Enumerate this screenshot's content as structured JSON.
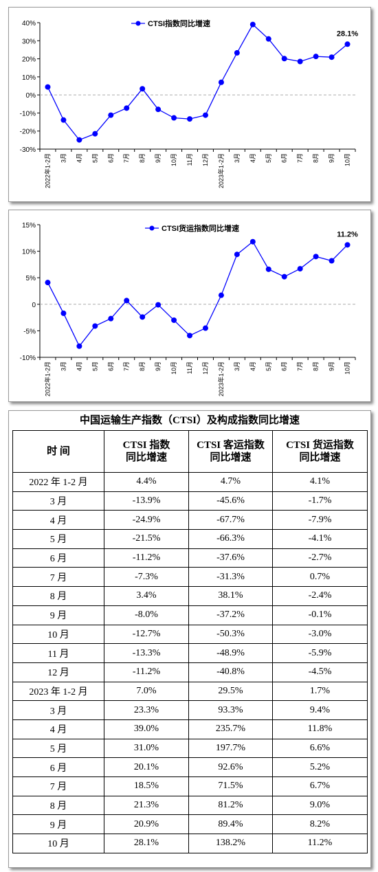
{
  "chart_data": [
    {
      "type": "line",
      "categories": [
        "2022年1-2月",
        "3月",
        "4月",
        "5月",
        "6月",
        "7月",
        "8月",
        "9月",
        "10月",
        "11月",
        "12月",
        "2023年1-2月",
        "3月",
        "4月",
        "5月",
        "6月",
        "7月",
        "8月",
        "9月",
        "10月"
      ],
      "series": [
        {
          "name": "CTSI指数同比增速",
          "color": "#0000ff",
          "values": [
            4.4,
            -13.9,
            -24.9,
            -21.5,
            -11.2,
            -7.3,
            3.4,
            -8.0,
            -12.7,
            -13.3,
            -11.2,
            7.0,
            23.3,
            39.0,
            31.0,
            20.1,
            18.5,
            21.3,
            20.9,
            28.1
          ],
          "value_labels": [
            null,
            null,
            null,
            null,
            null,
            null,
            null,
            null,
            null,
            null,
            null,
            null,
            null,
            null,
            null,
            null,
            null,
            null,
            null,
            "28.1%"
          ]
        }
      ],
      "ylim": [
        -30,
        40
      ],
      "yticks": [
        {
          "value": -30,
          "label": "-30%"
        },
        {
          "value": -20,
          "label": "-20%"
        },
        {
          "value": -10,
          "label": "-10%"
        },
        {
          "value": 0,
          "label": "0%"
        },
        {
          "value": 10,
          "label": "10%"
        },
        {
          "value": 20,
          "label": "20%"
        },
        {
          "value": 30,
          "label": "30%"
        },
        {
          "value": 40,
          "label": "40%"
        }
      ],
      "legend": "top"
    },
    {
      "type": "line",
      "categories": [
        "2022年1-2月",
        "3月",
        "4月",
        "5月",
        "6月",
        "7月",
        "8月",
        "9月",
        "10月",
        "11月",
        "12月",
        "2023年1-2月",
        "3月",
        "4月",
        "5月",
        "6月",
        "7月",
        "8月",
        "9月",
        "10月"
      ],
      "series": [
        {
          "name": "CTSI货运指数同比增速",
          "color": "#0000ff",
          "values": [
            4.1,
            -1.7,
            -7.9,
            -4.1,
            -2.7,
            0.7,
            -2.4,
            -0.1,
            -3.0,
            -5.9,
            -4.5,
            1.7,
            9.4,
            11.8,
            6.6,
            5.2,
            6.7,
            9.0,
            8.2,
            11.2
          ],
          "value_labels": [
            null,
            null,
            null,
            null,
            null,
            null,
            null,
            null,
            null,
            null,
            null,
            null,
            null,
            null,
            null,
            null,
            null,
            null,
            null,
            "11.2%"
          ]
        }
      ],
      "ylim": [
        -10,
        15
      ],
      "yticks": [
        {
          "value": -10,
          "label": "-10%"
        },
        {
          "value": -5,
          "label": "-5%"
        },
        0,
        {
          "value": 5,
          "label": "5%"
        },
        {
          "value": 10,
          "label": "10%"
        },
        {
          "value": 15,
          "label": "15%"
        }
      ],
      "legend": "top"
    }
  ],
  "table": {
    "title": "中国运输生产指数（CTSI）及构成指数同比增速",
    "header": [
      [
        "时 间"
      ],
      [
        "CTSI 指数",
        "同比增速"
      ],
      [
        "CTSI 客运指数",
        "同比增速"
      ],
      [
        "CTSI 货运指数",
        "同比增速"
      ]
    ],
    "rows": [
      [
        "2022 年 1-2 月",
        "4.4%",
        "4.7%",
        "4.1%"
      ],
      [
        "3 月",
        "-13.9%",
        "-45.6%",
        "-1.7%"
      ],
      [
        "4 月",
        "-24.9%",
        "-67.7%",
        "-7.9%"
      ],
      [
        "5 月",
        "-21.5%",
        "-66.3%",
        "-4.1%"
      ],
      [
        "6 月",
        "-11.2%",
        "-37.6%",
        "-2.7%"
      ],
      [
        "7 月",
        "-7.3%",
        "-31.3%",
        "0.7%"
      ],
      [
        "8 月",
        "3.4%",
        "38.1%",
        "-2.4%"
      ],
      [
        "9 月",
        "-8.0%",
        "-37.2%",
        "-0.1%"
      ],
      [
        "10 月",
        "-12.7%",
        "-50.3%",
        "-3.0%"
      ],
      [
        "11 月",
        "-13.3%",
        "-48.9%",
        "-5.9%"
      ],
      [
        "12 月",
        "-11.2%",
        "-40.8%",
        "-4.5%"
      ],
      [
        "2023 年 1-2 月",
        "7.0%",
        "29.5%",
        "1.7%"
      ],
      [
        "3 月",
        "23.3%",
        "93.3%",
        "9.4%"
      ],
      [
        "4 月",
        "39.0%",
        "235.7%",
        "11.8%"
      ],
      [
        "5 月",
        "31.0%",
        "197.7%",
        "6.6%"
      ],
      [
        "6 月",
        "20.1%",
        "92.6%",
        "5.2%"
      ],
      [
        "7 月",
        "18.5%",
        "71.5%",
        "6.7%"
      ],
      [
        "8 月",
        "21.3%",
        "81.2%",
        "9.0%"
      ],
      [
        "9 月",
        "20.9%",
        "89.4%",
        "8.2%"
      ],
      [
        "10 月",
        "28.1%",
        "138.2%",
        "11.2%"
      ]
    ]
  }
}
